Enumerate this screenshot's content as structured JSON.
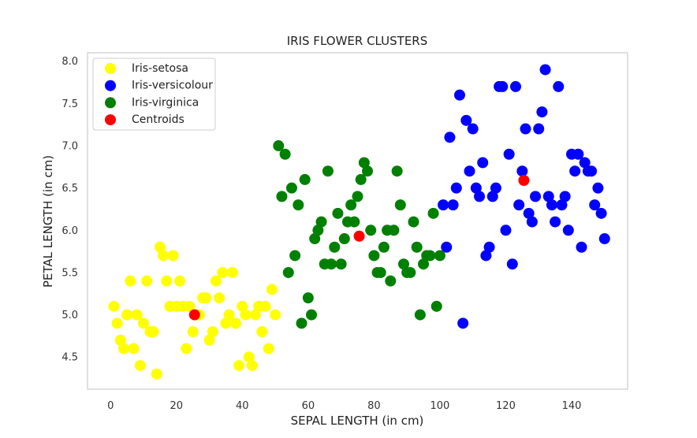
{
  "chart_data": {
    "type": "scatter",
    "title": "IRIS FLOWER CLUSTERS",
    "xlabel": "SEPAL LENGTH (in cm)",
    "ylabel": "PETAL LENGTH (in cm)",
    "xlim": [
      -7,
      157
    ],
    "ylim": [
      4.12,
      8.1
    ],
    "xticks": [
      0,
      20,
      40,
      60,
      80,
      100,
      120,
      140
    ],
    "yticks": [
      4.5,
      5.0,
      5.5,
      6.0,
      6.5,
      7.0,
      7.5,
      8.0
    ],
    "ytick_labels": [
      "4.5",
      "5.0",
      "5.5",
      "6.0",
      "6.5",
      "7.0",
      "7.5",
      "8.0"
    ],
    "grid": false,
    "legend_position": "top-left",
    "series": [
      {
        "name": "Iris-setosa",
        "color": "#ffff00",
        "points": [
          [
            1,
            5.1
          ],
          [
            2,
            4.9
          ],
          [
            3,
            4.7
          ],
          [
            4,
            4.6
          ],
          [
            5,
            5.0
          ],
          [
            6,
            5.4
          ],
          [
            7,
            4.6
          ],
          [
            8,
            5.0
          ],
          [
            9,
            4.4
          ],
          [
            10,
            4.9
          ],
          [
            11,
            5.4
          ],
          [
            12,
            4.8
          ],
          [
            13,
            4.8
          ],
          [
            14,
            4.3
          ],
          [
            15,
            5.8
          ],
          [
            16,
            5.7
          ],
          [
            17,
            5.4
          ],
          [
            18,
            5.1
          ],
          [
            19,
            5.7
          ],
          [
            20,
            5.1
          ],
          [
            21,
            5.4
          ],
          [
            22,
            5.1
          ],
          [
            23,
            4.6
          ],
          [
            24,
            5.1
          ],
          [
            25,
            4.8
          ],
          [
            26,
            5.0
          ],
          [
            27,
            5.0
          ],
          [
            28,
            5.2
          ],
          [
            29,
            5.2
          ],
          [
            30,
            4.7
          ],
          [
            31,
            4.8
          ],
          [
            32,
            5.4
          ],
          [
            33,
            5.2
          ],
          [
            34,
            5.5
          ],
          [
            35,
            4.9
          ],
          [
            36,
            5.0
          ],
          [
            37,
            5.5
          ],
          [
            38,
            4.9
          ],
          [
            39,
            4.4
          ],
          [
            40,
            5.1
          ],
          [
            41,
            5.0
          ],
          [
            42,
            4.5
          ],
          [
            43,
            4.4
          ],
          [
            44,
            5.0
          ],
          [
            45,
            5.1
          ],
          [
            46,
            4.8
          ],
          [
            47,
            5.1
          ],
          [
            48,
            4.6
          ],
          [
            49,
            5.3
          ],
          [
            50,
            5.0
          ]
        ]
      },
      {
        "name": "Iris-versicolour",
        "color": "#0000ff",
        "points": [
          [
            101,
            6.3
          ],
          [
            102,
            5.8
          ],
          [
            103,
            7.1
          ],
          [
            104,
            6.3
          ],
          [
            105,
            6.5
          ],
          [
            106,
            7.6
          ],
          [
            107,
            4.9
          ],
          [
            108,
            7.3
          ],
          [
            109,
            6.7
          ],
          [
            110,
            7.2
          ],
          [
            111,
            6.5
          ],
          [
            112,
            6.4
          ],
          [
            113,
            6.8
          ],
          [
            114,
            5.7
          ],
          [
            115,
            5.8
          ],
          [
            116,
            6.4
          ],
          [
            117,
            6.5
          ],
          [
            118,
            7.7
          ],
          [
            119,
            7.7
          ],
          [
            120,
            6.0
          ],
          [
            121,
            6.9
          ],
          [
            122,
            5.6
          ],
          [
            123,
            7.7
          ],
          [
            124,
            6.3
          ],
          [
            125,
            6.7
          ],
          [
            126,
            7.2
          ],
          [
            127,
            6.2
          ],
          [
            128,
            6.1
          ],
          [
            129,
            6.4
          ],
          [
            130,
            7.2
          ],
          [
            131,
            7.4
          ],
          [
            132,
            7.9
          ],
          [
            133,
            6.4
          ],
          [
            134,
            6.3
          ],
          [
            135,
            6.1
          ],
          [
            136,
            7.7
          ],
          [
            137,
            6.3
          ],
          [
            138,
            6.4
          ],
          [
            139,
            6.0
          ],
          [
            140,
            6.9
          ],
          [
            141,
            6.7
          ],
          [
            142,
            6.9
          ],
          [
            143,
            5.8
          ],
          [
            144,
            6.8
          ],
          [
            145,
            6.7
          ],
          [
            146,
            6.7
          ],
          [
            147,
            6.3
          ],
          [
            148,
            6.5
          ],
          [
            149,
            6.2
          ],
          [
            150,
            5.9
          ]
        ]
      },
      {
        "name": "Iris-virginica",
        "color": "#008000",
        "points": [
          [
            51,
            7.0
          ],
          [
            52,
            6.4
          ],
          [
            53,
            6.9
          ],
          [
            54,
            5.5
          ],
          [
            55,
            6.5
          ],
          [
            56,
            5.7
          ],
          [
            57,
            6.3
          ],
          [
            58,
            4.9
          ],
          [
            59,
            6.6
          ],
          [
            60,
            5.2
          ],
          [
            61,
            5.0
          ],
          [
            62,
            5.9
          ],
          [
            63,
            6.0
          ],
          [
            64,
            6.1
          ],
          [
            65,
            5.6
          ],
          [
            66,
            6.7
          ],
          [
            67,
            5.6
          ],
          [
            68,
            5.8
          ],
          [
            69,
            6.2
          ],
          [
            70,
            5.6
          ],
          [
            71,
            5.9
          ],
          [
            72,
            6.1
          ],
          [
            73,
            6.3
          ],
          [
            74,
            6.1
          ],
          [
            75,
            6.4
          ],
          [
            76,
            6.6
          ],
          [
            77,
            6.8
          ],
          [
            78,
            6.7
          ],
          [
            79,
            6.0
          ],
          [
            80,
            5.7
          ],
          [
            81,
            5.5
          ],
          [
            82,
            5.5
          ],
          [
            83,
            5.8
          ],
          [
            84,
            6.0
          ],
          [
            85,
            5.4
          ],
          [
            86,
            6.0
          ],
          [
            87,
            6.7
          ],
          [
            88,
            6.3
          ],
          [
            89,
            5.6
          ],
          [
            90,
            5.5
          ],
          [
            91,
            5.5
          ],
          [
            92,
            6.1
          ],
          [
            93,
            5.8
          ],
          [
            94,
            5.0
          ],
          [
            95,
            5.6
          ],
          [
            96,
            5.7
          ],
          [
            97,
            5.7
          ],
          [
            98,
            6.2
          ],
          [
            99,
            5.1
          ],
          [
            100,
            5.7
          ]
        ]
      },
      {
        "name": "Centroids",
        "color": "#ff0000",
        "points": [
          [
            25.5,
            5.0
          ],
          [
            75.5,
            5.93
          ],
          [
            125.5,
            6.59
          ]
        ]
      }
    ]
  }
}
